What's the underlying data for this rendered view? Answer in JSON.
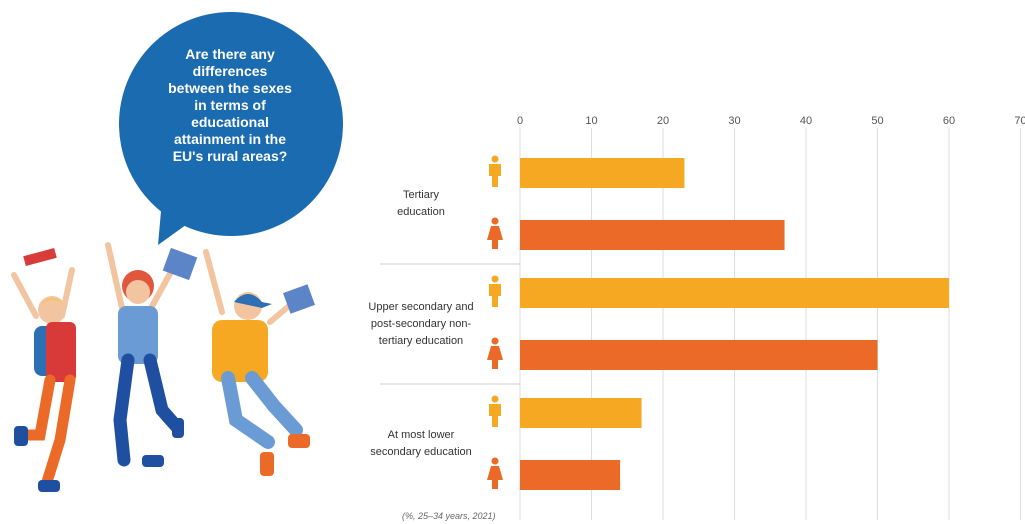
{
  "bubble": {
    "lines": [
      "Are there any",
      "differences",
      "between the sexes",
      "in terms of",
      "educational",
      "attainment in the",
      "EU's rural areas?"
    ]
  },
  "colors": {
    "male": "#f7a823",
    "female": "#ec6a27",
    "bubble": "#1a6bb0"
  },
  "legend_icons": [
    "male-person-icon",
    "female-person-icon"
  ],
  "chart_data": {
    "type": "bar",
    "orientation": "horizontal",
    "categories": [
      "Tertiary education",
      "Upper secondary and post-secondary non-tertiary education",
      "At most lower secondary education"
    ],
    "category_lines": [
      [
        "Tertiary",
        "education"
      ],
      [
        "Upper secondary and",
        "post-secondary non-",
        "tertiary education"
      ],
      [
        "At most lower",
        "secondary education"
      ]
    ],
    "series": [
      {
        "icon": "male-person-icon",
        "values": [
          23,
          60,
          17
        ]
      },
      {
        "icon": "female-person-icon",
        "values": [
          37,
          50,
          14
        ]
      }
    ],
    "xlim": [
      0,
      70
    ],
    "xticks": [
      "0",
      "10",
      "20",
      "30",
      "40",
      "50",
      "60",
      "70"
    ],
    "grid": true,
    "note": "(%, 25–34 years, 2021)"
  }
}
